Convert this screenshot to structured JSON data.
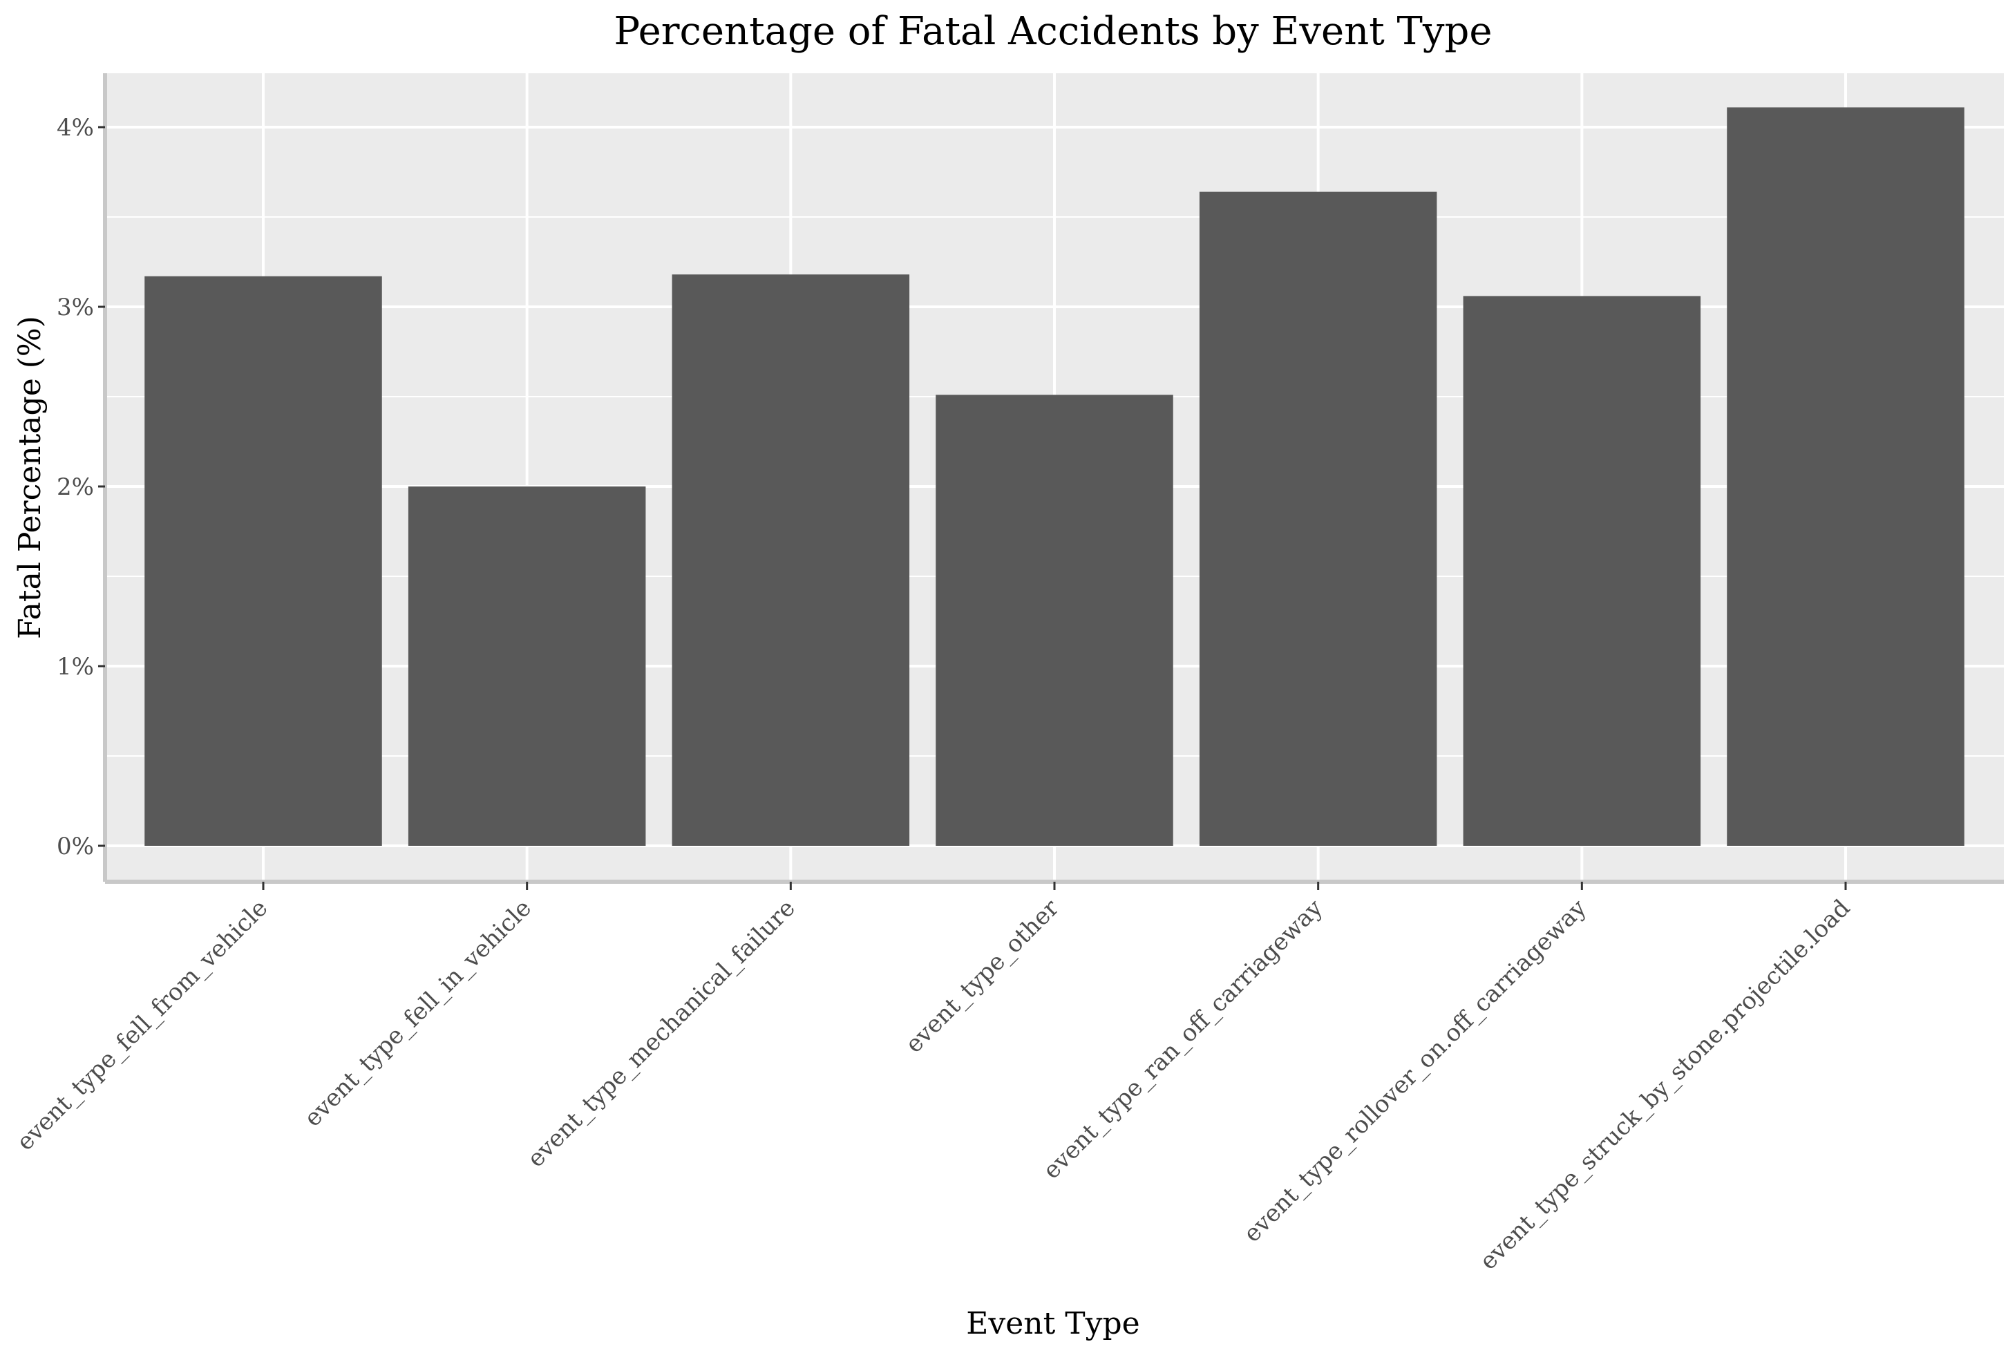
{
  "chart_data": {
    "type": "bar",
    "title": "Percentage of Fatal Accidents by Event Type",
    "xlabel": "Event Type",
    "ylabel": "Fatal Percentage (%)",
    "categories": [
      "event_type_fell_from_vehicle",
      "event_type_fell_in_vehicle",
      "event_type_mechanical_failure",
      "event_type_other",
      "event_type_ran_off_carriageway",
      "event_type_rollover_on.off_carriageway",
      "event_type_struck_by_stone.projectile.load"
    ],
    "values": [
      3.17,
      2.0,
      3.18,
      2.51,
      3.64,
      3.06,
      4.11
    ],
    "ylim": [
      -0.2,
      4.3
    ],
    "yticks": [
      0,
      1,
      2,
      3,
      4
    ],
    "ytick_labels": [
      "0%",
      "1%",
      "2%",
      "3%",
      "4%"
    ],
    "grid": true,
    "legend": "none",
    "colors": {
      "bar": "#595959",
      "panel": "#ebebeb",
      "grid": "#ffffff",
      "axis_line": "#c8c8c8",
      "tick": "#333333"
    }
  }
}
